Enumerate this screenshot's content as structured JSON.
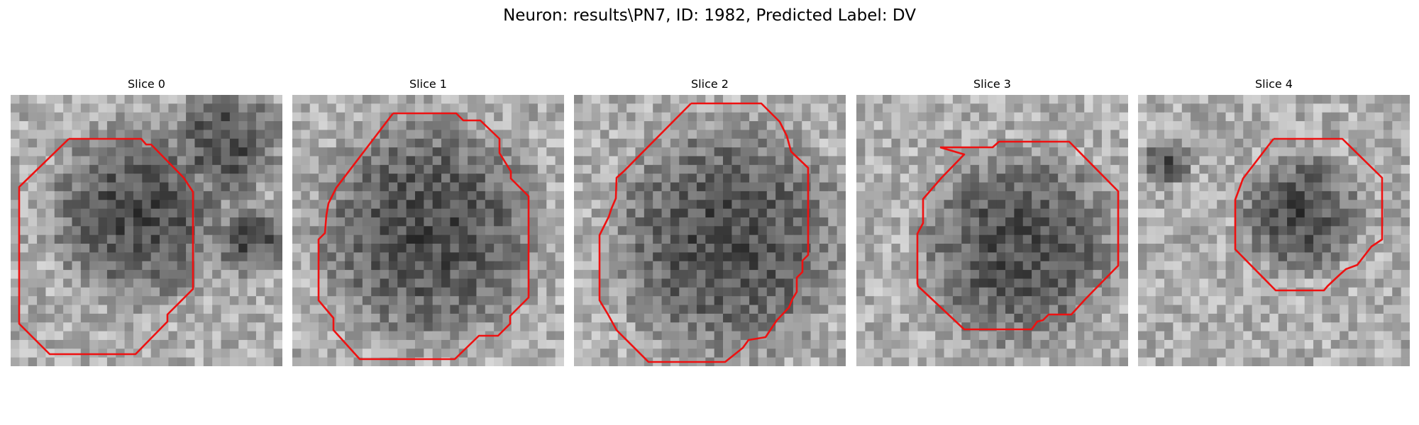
{
  "figure": {
    "title": "Neuron: results\\PN7, ID: 1982, Predicted Label: DV"
  },
  "contour_color": "#ee1111",
  "slices": [
    {
      "title": "Slice 0"
    },
    {
      "title": "Slice 1"
    },
    {
      "title": "Slice 2"
    },
    {
      "title": "Slice 3"
    },
    {
      "title": "Slice 4"
    }
  ]
}
